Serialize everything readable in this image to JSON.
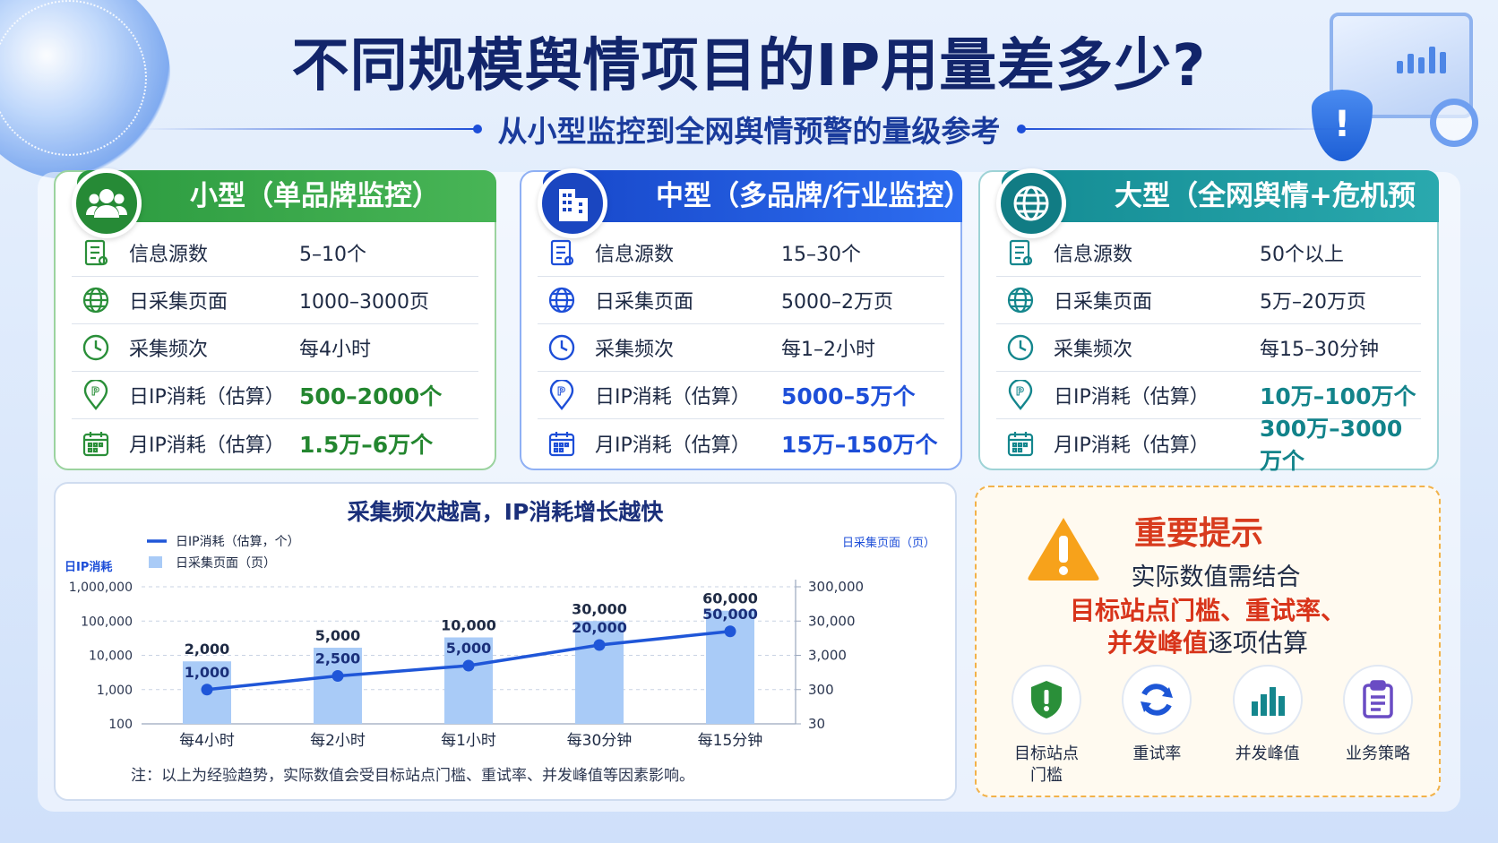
{
  "title": "不同规模舆情项目的IP用量差多少?",
  "subtitle": "从小型监控到全网舆情预警的量级参考",
  "cards": [
    {
      "header": "小型（单品牌监控）",
      "rows": [
        {
          "label": "信息源数",
          "value": "5–10个"
        },
        {
          "label": "日采集页面",
          "value": "1000–3000页"
        },
        {
          "label": "采集频次",
          "value": "每4小时"
        },
        {
          "label": "日IP消耗（估算）",
          "value": "500–2000个"
        },
        {
          "label": "月IP消耗（估算）",
          "value": "1.5万–6万个"
        }
      ]
    },
    {
      "header": "中型（多品牌/行业监控）",
      "rows": [
        {
          "label": "信息源数",
          "value": "15–30个"
        },
        {
          "label": "日采集页面",
          "value": "5000–2万页"
        },
        {
          "label": "采集频次",
          "value": "每1–2小时"
        },
        {
          "label": "日IP消耗（估算）",
          "value": "5000–5万个"
        },
        {
          "label": "月IP消耗（估算）",
          "value": "15万–150万个"
        }
      ]
    },
    {
      "header": "大型（全网舆情+危机预警）",
      "rows": [
        {
          "label": "信息源数",
          "value": "50个以上"
        },
        {
          "label": "日采集页面",
          "value": "5万–20万页"
        },
        {
          "label": "采集频次",
          "value": "每15–30分钟"
        },
        {
          "label": "日IP消耗（估算）",
          "value": "10万–100万个"
        },
        {
          "label": "月IP消耗（估算）",
          "value": "300万–3000万个"
        }
      ]
    }
  ],
  "chart_data": {
    "type": "bar+line",
    "title": "采集频次越高，IP消耗增长越快",
    "categories": [
      "每4小时",
      "每2小时",
      "每1小时",
      "每30分钟",
      "每15分钟"
    ],
    "series": [
      {
        "name": "日IP消耗（估算，个）",
        "kind": "line",
        "axis": "left",
        "values": [
          1000,
          2500,
          5000,
          20000,
          50000
        ],
        "labels": [
          "1,000",
          "2,500",
          "5,000",
          "20,000",
          "50,000"
        ],
        "color": "#1f56d8"
      },
      {
        "name": "日采集页面（页）",
        "kind": "bar",
        "axis": "right",
        "values": [
          2000,
          5000,
          10000,
          30000,
          60000
        ],
        "labels": [
          "2,000",
          "5,000",
          "10,000",
          "30,000",
          "60,000"
        ],
        "color": "#a9cbf7"
      }
    ],
    "left_axis": {
      "label": "日IP消耗",
      "scale": "log",
      "range": [
        100,
        1000000
      ],
      "ticks": [
        "100",
        "1,000",
        "10,000",
        "100,000",
        "1,000,000"
      ]
    },
    "right_axis": {
      "label": "日采集页面（页）",
      "scale": "log",
      "range": [
        30,
        300000
      ],
      "ticks": [
        "30",
        "300",
        "3,000",
        "30,000",
        "300,000"
      ]
    },
    "grid": true,
    "legend": "top-left",
    "note": "注：以上为经验趋势，实际数值会受目标站点门槛、重试率、并发峰值等因素影响。"
  },
  "tip": {
    "title": "重要提示",
    "line1": "实际数值需结合",
    "line2": "目标站点门槛、重试率、",
    "line3_red": "并发峰值",
    "line3_rest": "逐项估算",
    "factors": [
      {
        "label_1": "目标站点",
        "label_2": "门槛",
        "icon": "shield-check-icon",
        "color": "#2a8f39"
      },
      {
        "label_1": "重试率",
        "label_2": "",
        "icon": "refresh-icon",
        "color": "#1d56d6"
      },
      {
        "label_1": "并发峰值",
        "label_2": "",
        "icon": "bar-chart-icon",
        "color": "#14868d"
      },
      {
        "label_1": "业务策略",
        "label_2": "",
        "icon": "clipboard-icon",
        "color": "#6a4cc4"
      }
    ]
  }
}
